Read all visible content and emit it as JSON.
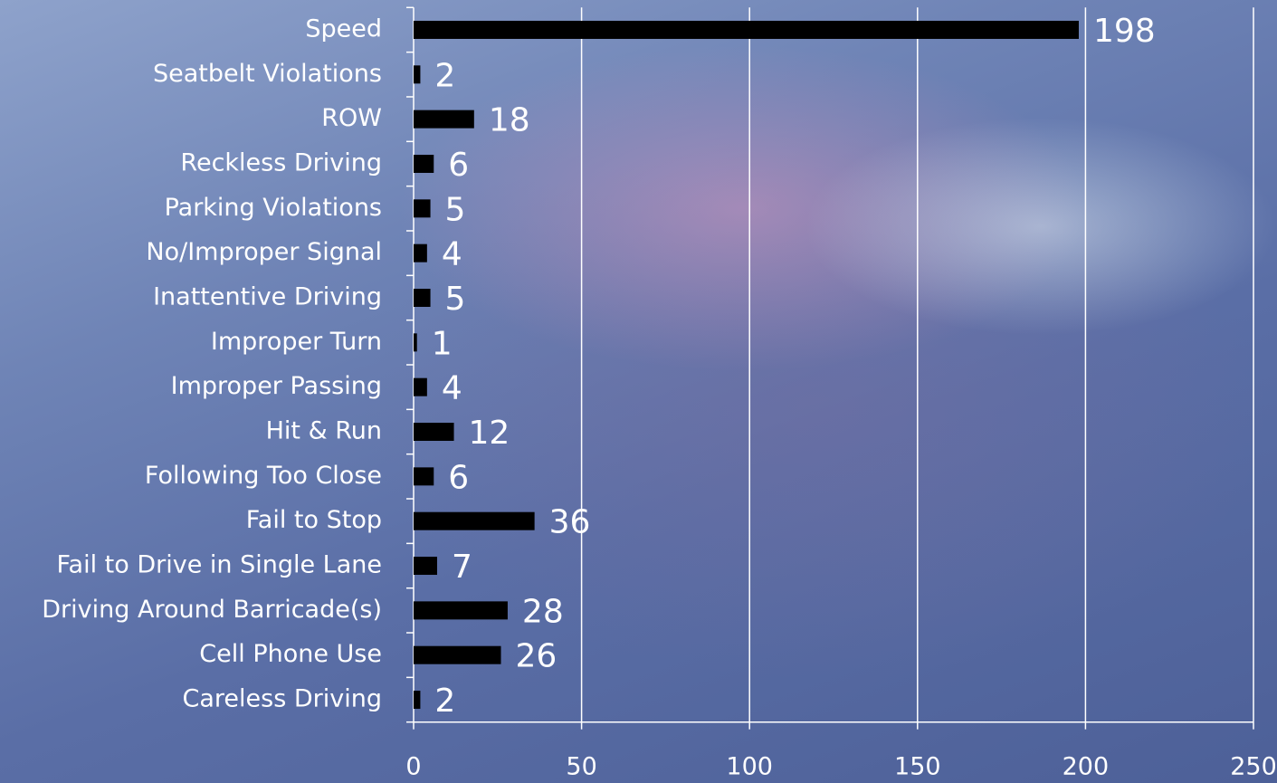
{
  "chart_data": {
    "type": "barh",
    "categories": [
      "Speed",
      "Seatbelt Violations",
      "ROW",
      "Reckless Driving",
      "Parking Violations",
      "No/Improper Signal",
      "Inattentive Driving",
      "Improper Turn",
      "Improper Passing",
      "Hit & Run",
      "Following Too Close",
      "Fail to Stop",
      "Fail to Drive in Single Lane",
      "Driving Around Barricade(s)",
      "Cell Phone Use",
      "Careless Driving"
    ],
    "values": [
      198,
      2,
      18,
      6,
      5,
      4,
      5,
      1,
      4,
      12,
      6,
      36,
      7,
      28,
      26,
      2
    ],
    "color": "#000000",
    "xlim": [
      0,
      250
    ],
    "xticks": [
      0,
      50,
      100,
      150,
      200,
      250
    ],
    "grid": true
  }
}
